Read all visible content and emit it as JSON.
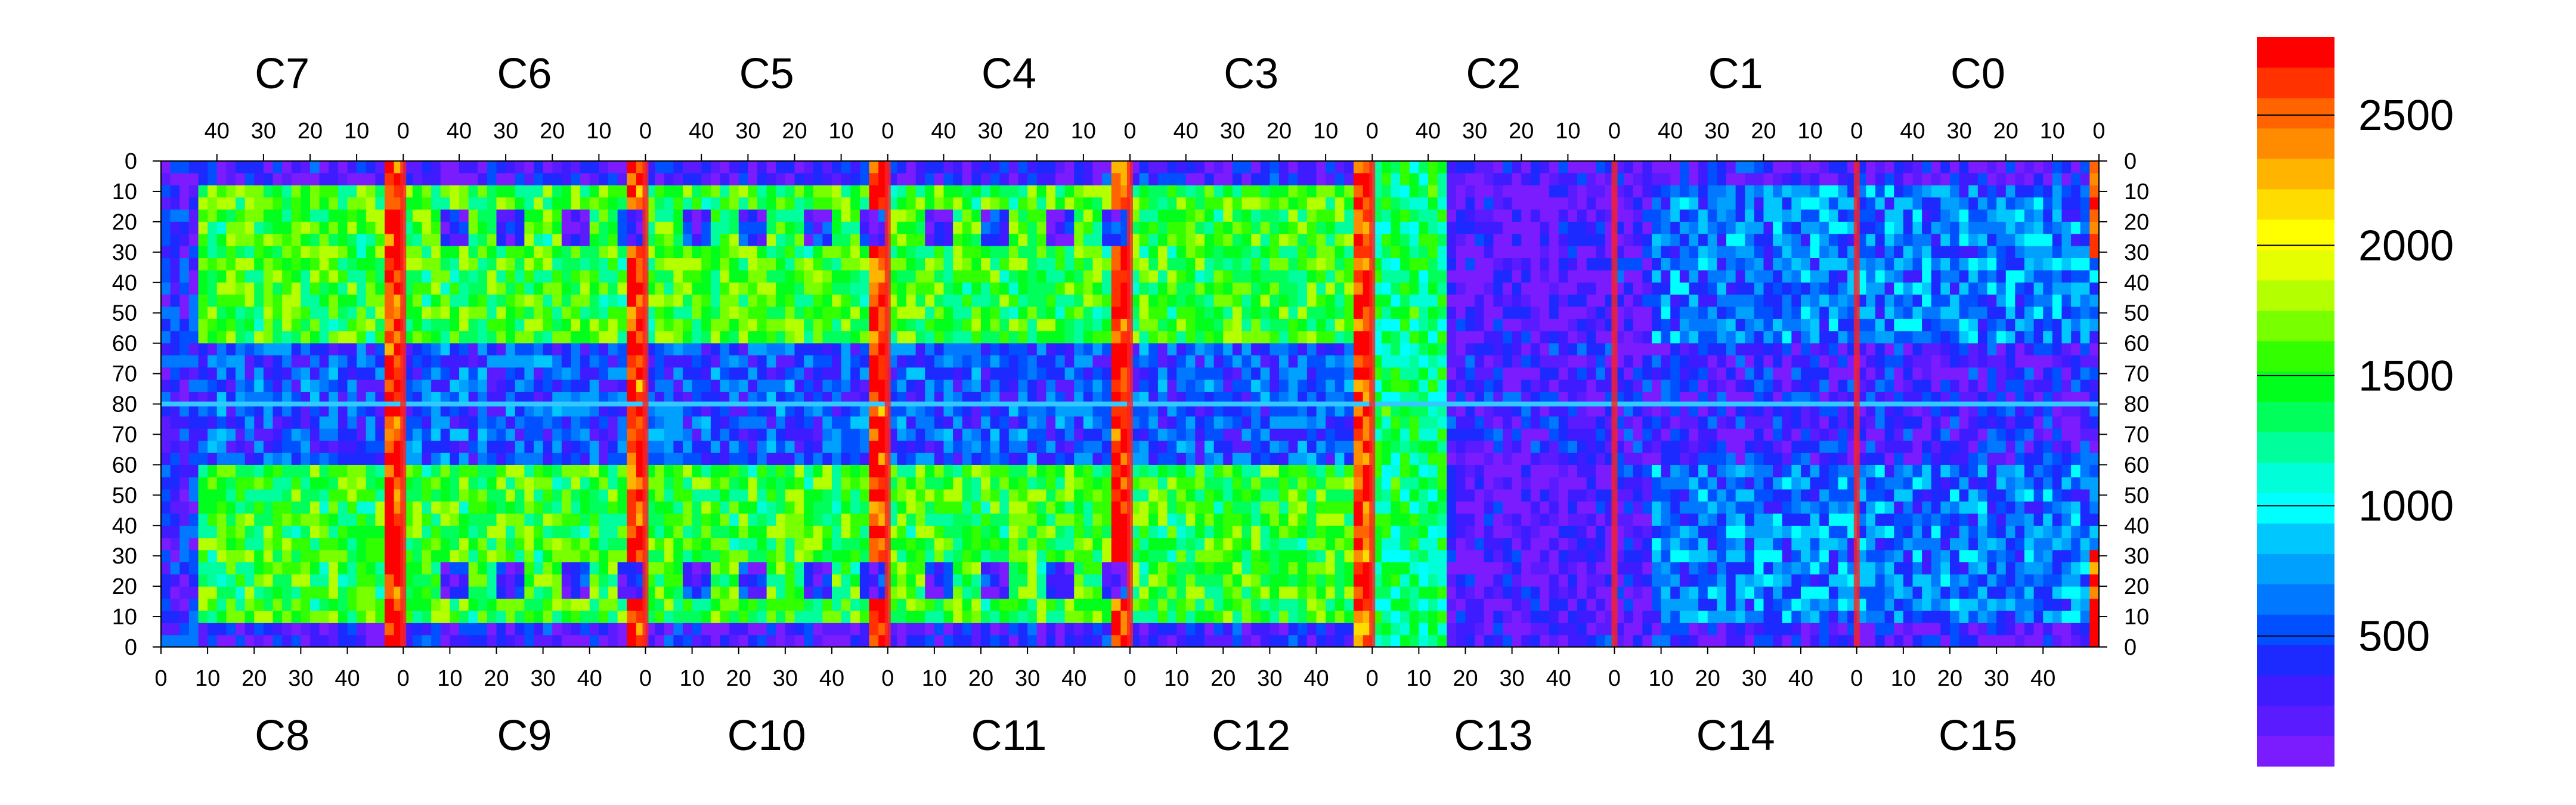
{
  "chart_data": {
    "type": "heatmap",
    "chip_labels_top": [
      "C7",
      "C6",
      "C5",
      "C4",
      "C3",
      "C2",
      "C1",
      "C0"
    ],
    "chip_labels_bottom": [
      "C8",
      "C9",
      "C10",
      "C11",
      "C12",
      "C13",
      "C14",
      "C15"
    ],
    "top_x_ticks": [
      "40",
      "30",
      "20",
      "10",
      "0"
    ],
    "bottom_x_ticks": [
      "0",
      "10",
      "20",
      "30",
      "40"
    ],
    "y_ticks_upper": [
      "0",
      "10",
      "20",
      "30",
      "40",
      "50",
      "60",
      "70",
      "80"
    ],
    "y_ticks_lower": [
      "70",
      "60",
      "50",
      "40",
      "30",
      "20",
      "10",
      "0"
    ],
    "colorbar": {
      "min": 0,
      "max": 2800,
      "tick_labels": [
        "2500",
        "2000",
        "1500",
        "1000",
        "500"
      ],
      "tick_values": [
        2500,
        2000,
        1500,
        1000,
        500
      ],
      "colors": [
        "#7b1cff",
        "#5a1cff",
        "#3e1cff",
        "#1c2aff",
        "#0050ff",
        "#0078ff",
        "#00a0ff",
        "#00c8ff",
        "#00ffff",
        "#00ffd8",
        "#00ff9c",
        "#00ff5a",
        "#00ff1c",
        "#32ff00",
        "#78ff00",
        "#b4ff00",
        "#e6ff00",
        "#ffff00",
        "#ffdc00",
        "#ffb400",
        "#ff8c00",
        "#ff6400",
        "#ff3200",
        "#ff0000"
      ]
    },
    "columns_per_chip": 52,
    "rows_per_half": 80,
    "grid": true,
    "legend": "right"
  }
}
